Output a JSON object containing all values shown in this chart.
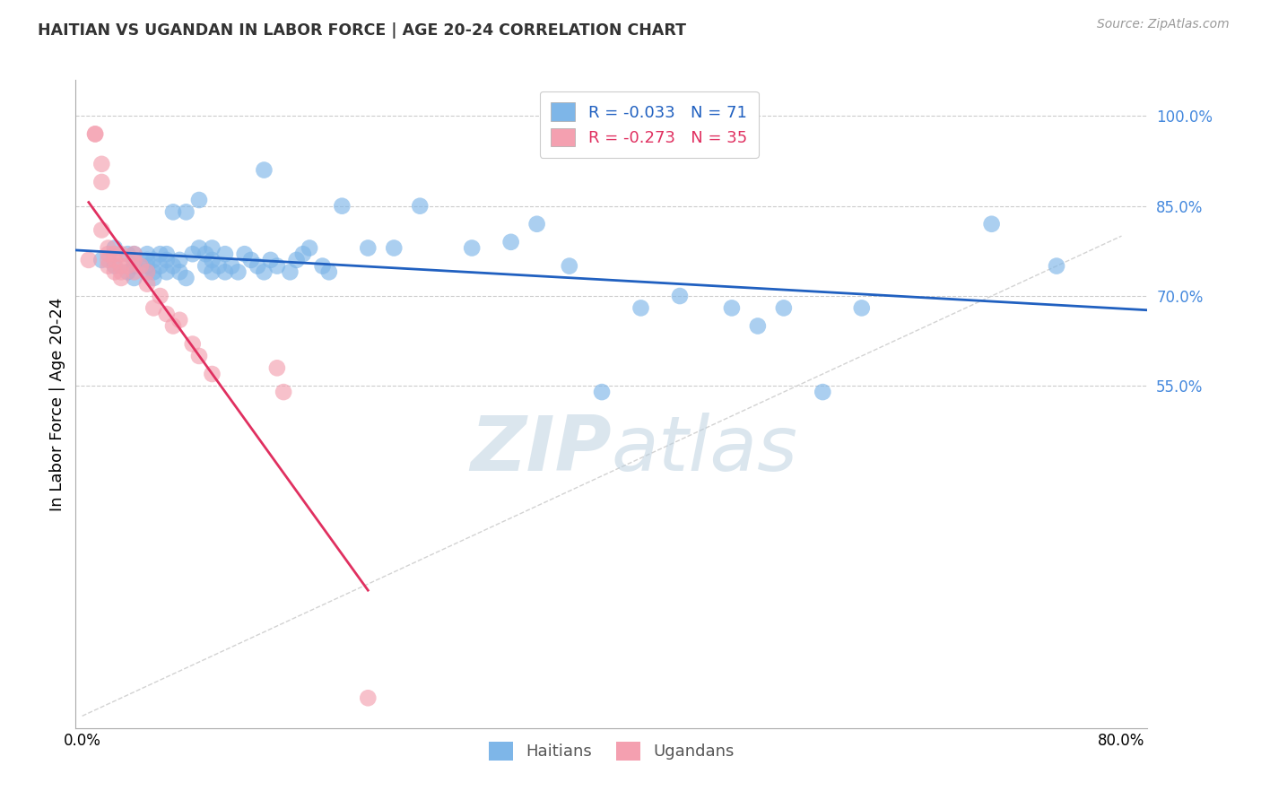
{
  "title": "HAITIAN VS UGANDAN IN LABOR FORCE | AGE 20-24 CORRELATION CHART",
  "source_text": "Source: ZipAtlas.com",
  "ylabel": "In Labor Force | Age 20-24",
  "xlim": [
    -0.005,
    0.82
  ],
  "ylim": [
    -0.02,
    1.06
  ],
  "yticks": [
    0.55,
    0.7,
    0.85,
    1.0
  ],
  "ytick_labels": [
    "55.0%",
    "70.0%",
    "85.0%",
    "100.0%"
  ],
  "xticks": [
    0.0,
    0.2,
    0.4,
    0.6,
    0.8
  ],
  "xtick_labels": [
    "0.0%",
    "",
    "",
    "",
    "80.0%"
  ],
  "blue_R": -0.033,
  "blue_N": 71,
  "pink_R": -0.273,
  "pink_N": 35,
  "blue_color": "#7EB6E8",
  "pink_color": "#F4A0B0",
  "blue_line_color": "#2060C0",
  "pink_line_color": "#E03060",
  "diagonal_line_color": "#C8C8C8",
  "grid_color": "#CCCCCC",
  "title_color": "#333333",
  "right_label_color": "#4488DD",
  "watermark_color": "#B8CEDE",
  "blue_scatter_x": [
    0.015,
    0.025,
    0.025,
    0.035,
    0.035,
    0.04,
    0.04,
    0.04,
    0.04,
    0.05,
    0.05,
    0.05,
    0.05,
    0.055,
    0.055,
    0.055,
    0.06,
    0.06,
    0.065,
    0.065,
    0.065,
    0.07,
    0.07,
    0.075,
    0.075,
    0.08,
    0.08,
    0.085,
    0.09,
    0.09,
    0.095,
    0.095,
    0.1,
    0.1,
    0.1,
    0.105,
    0.11,
    0.11,
    0.115,
    0.12,
    0.125,
    0.13,
    0.135,
    0.14,
    0.14,
    0.145,
    0.15,
    0.16,
    0.165,
    0.17,
    0.175,
    0.185,
    0.19,
    0.2,
    0.22,
    0.24,
    0.26,
    0.3,
    0.33,
    0.35,
    0.375,
    0.4,
    0.43,
    0.46,
    0.5,
    0.52,
    0.54,
    0.57,
    0.6,
    0.7,
    0.75
  ],
  "blue_scatter_y": [
    0.76,
    0.78,
    0.75,
    0.77,
    0.74,
    0.76,
    0.77,
    0.75,
    0.73,
    0.74,
    0.76,
    0.77,
    0.75,
    0.76,
    0.74,
    0.73,
    0.75,
    0.77,
    0.76,
    0.74,
    0.77,
    0.75,
    0.84,
    0.74,
    0.76,
    0.73,
    0.84,
    0.77,
    0.78,
    0.86,
    0.75,
    0.77,
    0.74,
    0.76,
    0.78,
    0.75,
    0.74,
    0.77,
    0.75,
    0.74,
    0.77,
    0.76,
    0.75,
    0.91,
    0.74,
    0.76,
    0.75,
    0.74,
    0.76,
    0.77,
    0.78,
    0.75,
    0.74,
    0.85,
    0.78,
    0.78,
    0.85,
    0.78,
    0.79,
    0.82,
    0.75,
    0.54,
    0.68,
    0.7,
    0.68,
    0.65,
    0.68,
    0.54,
    0.68,
    0.82,
    0.75
  ],
  "pink_scatter_x": [
    0.005,
    0.01,
    0.01,
    0.015,
    0.015,
    0.015,
    0.02,
    0.02,
    0.02,
    0.02,
    0.025,
    0.025,
    0.025,
    0.03,
    0.03,
    0.03,
    0.03,
    0.035,
    0.04,
    0.04,
    0.04,
    0.045,
    0.05,
    0.05,
    0.055,
    0.06,
    0.065,
    0.07,
    0.075,
    0.085,
    0.09,
    0.1,
    0.15,
    0.155,
    0.22
  ],
  "pink_scatter_y": [
    0.76,
    0.97,
    0.97,
    0.92,
    0.89,
    0.81,
    0.78,
    0.77,
    0.75,
    0.76,
    0.74,
    0.76,
    0.77,
    0.74,
    0.75,
    0.77,
    0.73,
    0.75,
    0.74,
    0.76,
    0.77,
    0.75,
    0.72,
    0.74,
    0.68,
    0.7,
    0.67,
    0.65,
    0.66,
    0.62,
    0.6,
    0.57,
    0.58,
    0.54,
    0.03
  ],
  "blue_trend_x": [
    0.0,
    0.8
  ],
  "blue_trend_y_start": 0.758,
  "blue_trend_slope": -0.022,
  "pink_trend_x_start": 0.005,
  "pink_trend_x_end": 0.22,
  "pink_trend_y_start": 0.8,
  "pink_trend_slope": -3.5
}
